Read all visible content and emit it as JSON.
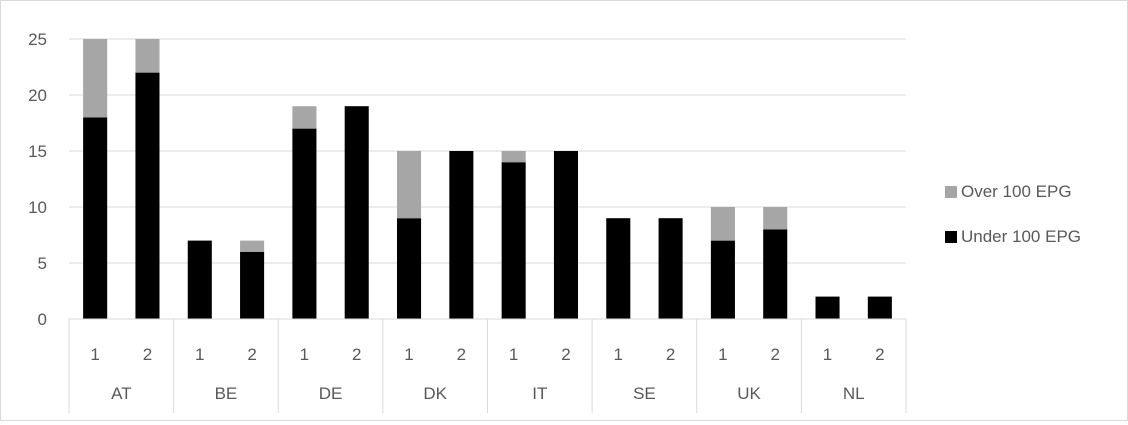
{
  "chart_data": {
    "type": "bar",
    "stacked": true,
    "groups": [
      "AT",
      "BE",
      "DE",
      "DK",
      "IT",
      "SE",
      "UK",
      "NL"
    ],
    "subcategories": [
      "1",
      "2"
    ],
    "series": [
      {
        "name": "Under 100 EPG",
        "color": "#000000",
        "values": [
          18,
          22,
          7,
          6,
          17,
          19,
          9,
          15,
          14,
          15,
          9,
          9,
          7,
          8,
          2,
          2
        ]
      },
      {
        "name": "Over 100 EPG",
        "color": "#a6a6a6",
        "values": [
          7,
          3,
          0,
          1,
          2,
          0,
          6,
          0,
          1,
          0,
          0,
          0,
          3,
          2,
          0,
          0
        ]
      }
    ],
    "ylim": [
      0,
      25
    ],
    "yticks": [
      0,
      5,
      10,
      15,
      20,
      25
    ],
    "grid": true,
    "legend_position": "right",
    "legend_order": [
      "Over 100 EPG",
      "Under 100 EPG"
    ],
    "title": "",
    "xlabel": "",
    "ylabel": ""
  }
}
